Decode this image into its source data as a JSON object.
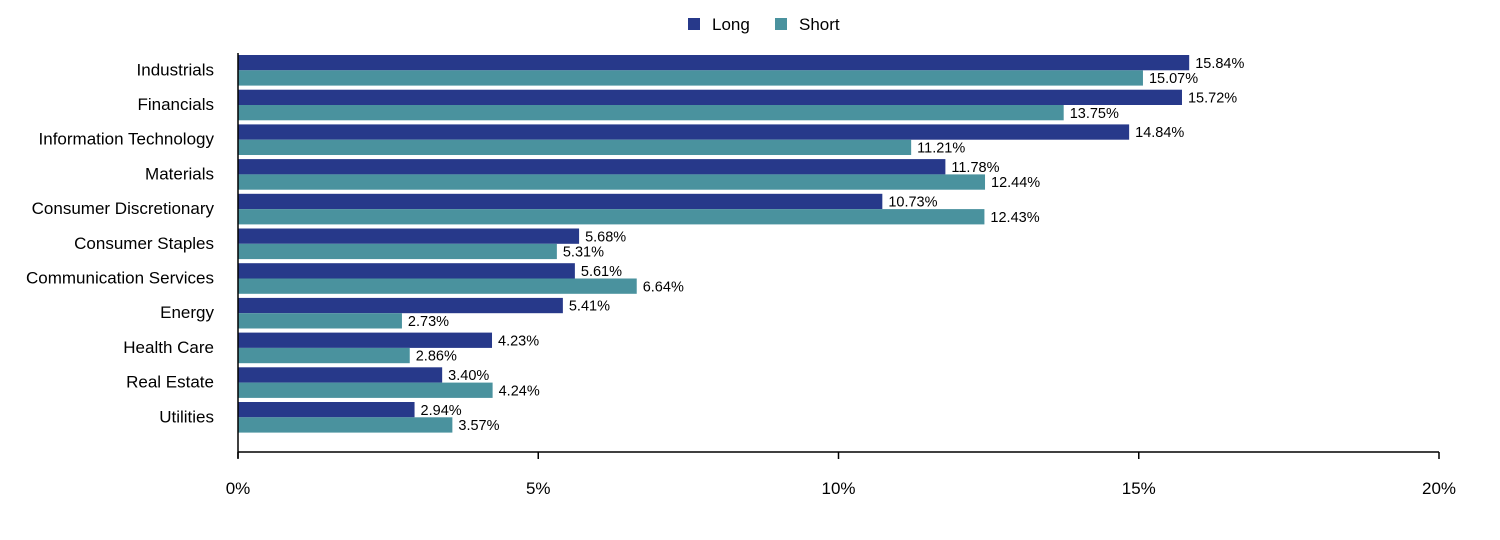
{
  "legend": {
    "placement": "top-center",
    "items": [
      {
        "label": "Long",
        "color": "#27398a"
      },
      {
        "label": "Short",
        "color": "#4a929e"
      }
    ]
  },
  "chart_data": {
    "type": "bar",
    "orientation": "horizontal",
    "categories": [
      "Industrials",
      "Financials",
      "Information Technology",
      "Materials",
      "Consumer Discretionary",
      "Consumer Staples",
      "Communication Services",
      "Energy",
      "Health Care",
      "Real Estate",
      "Utilities"
    ],
    "series": [
      {
        "name": "Long",
        "color": "#27398a",
        "values": [
          15.84,
          15.72,
          14.84,
          11.78,
          10.73,
          5.68,
          5.61,
          5.41,
          4.23,
          3.4,
          2.94
        ],
        "labels": [
          "15.84%",
          "15.72%",
          "14.84%",
          "11.78%",
          "10.73%",
          "5.68%",
          "5.61%",
          "5.41%",
          "4.23%",
          "3.40%",
          "2.94%"
        ]
      },
      {
        "name": "Short",
        "color": "#4a929e",
        "values": [
          15.07,
          13.75,
          11.21,
          12.44,
          12.43,
          5.31,
          6.64,
          2.73,
          2.86,
          4.24,
          3.57
        ],
        "labels": [
          "15.07%",
          "13.75%",
          "11.21%",
          "12.44%",
          "12.43%",
          "5.31%",
          "6.64%",
          "2.73%",
          "2.86%",
          "4.24%",
          "3.57%"
        ]
      }
    ],
    "xlim": [
      0,
      20
    ],
    "xticks": [
      0,
      5,
      10,
      15,
      20
    ],
    "xtick_labels": [
      "0%",
      "5%",
      "10%",
      "15%",
      "20%"
    ],
    "title": "",
    "xlabel": "",
    "ylabel": "",
    "grid": false
  }
}
